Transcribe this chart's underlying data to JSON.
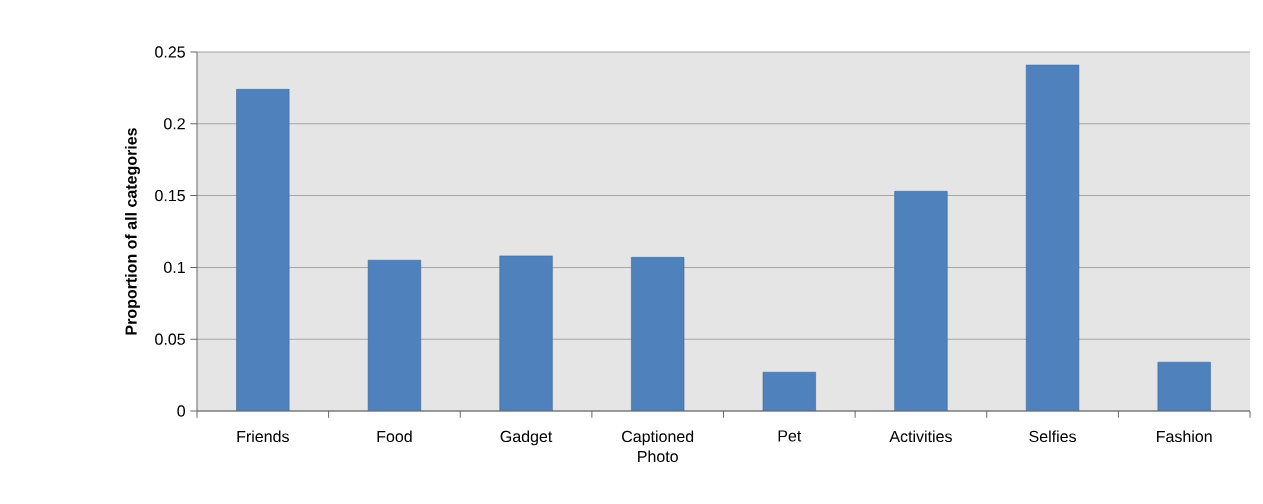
{
  "chart_data": {
    "type": "bar",
    "ylabel": "Proportion of all categories",
    "categories": [
      "Friends",
      "Food",
      "Gadget",
      "Captioned Photo",
      "Pet",
      "Activities",
      "Selfies",
      "Fashion"
    ],
    "values": [
      0.224,
      0.105,
      0.108,
      0.107,
      0.027,
      0.153,
      0.241,
      0.034
    ],
    "color": "#4f81bd",
    "ylim": [
      0,
      0.25
    ],
    "yticks": [
      0,
      0.05,
      0.1,
      0.15,
      0.2,
      0.25
    ],
    "grid": "y"
  }
}
